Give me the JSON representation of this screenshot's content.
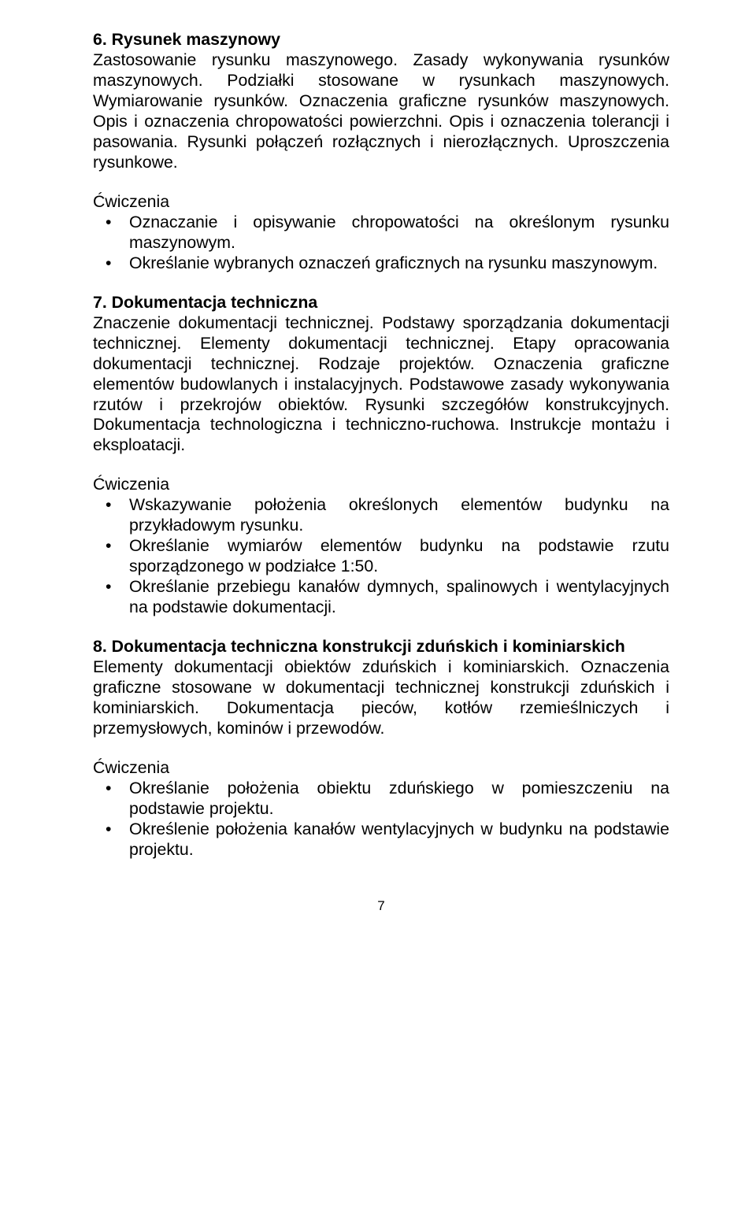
{
  "section6": {
    "heading": "6. Rysunek maszynowy",
    "para": "Zastosowanie rysunku maszynowego. Zasady wykonywania rysunków maszynowych. Podziałki stosowane w rysunkach maszynowych. Wymiarowanie rysunków. Oznaczenia graficzne rysunków maszynowych. Opis i oznaczenia chropowatości powierzchni. Opis i oznaczenia tolerancji i pasowania. Rysunki połączeń rozłącznych i nierozłącznych. Uproszczenia rysunkowe.",
    "ex_label": "Ćwiczenia",
    "items": [
      "Oznaczanie i opisywanie chropowatości na określonym rysunku maszynowym.",
      "Określanie wybranych oznaczeń graficznych na rysunku maszynowym."
    ]
  },
  "section7": {
    "heading": "7. Dokumentacja techniczna",
    "para": "Znaczenie dokumentacji technicznej. Podstawy sporządzania dokumentacji technicznej. Elementy dokumentacji technicznej. Etapy opracowania dokumentacji technicznej. Rodzaje projektów. Oznaczenia graficzne elementów budowlanych i instalacyjnych. Podstawowe zasady wykonywania rzutów i przekrojów obiektów. Rysunki szczegółów konstrukcyjnych. Dokumentacja technologiczna i techniczno-ruchowa. Instrukcje montażu i eksploatacji.",
    "ex_label": "Ćwiczenia",
    "items": [
      "Wskazywanie położenia określonych elementów budynku na przykładowym rysunku.",
      "Określanie wymiarów elementów budynku na podstawie rzutu sporządzonego w podziałce 1:50.",
      "Określanie przebiegu kanałów dymnych, spalinowych i wentylacyjnych na podstawie dokumentacji."
    ]
  },
  "section8": {
    "heading": "8. Dokumentacja techniczna konstrukcji zduńskich i kominiarskich",
    "para": "Elementy dokumentacji obiektów zduńskich i kominiarskich. Oznaczenia graficzne stosowane w dokumentacji technicznej konstrukcji zduńskich i kominiarskich. Dokumentacja pieców, kotłów rzemieślniczych i przemysłowych, kominów i przewodów.",
    "ex_label": "Ćwiczenia",
    "items": [
      "Określanie położenia obiektu zduńskiego w pomieszczeniu na podstawie projektu.",
      "Określenie położenia kanałów wentylacyjnych w budynku na podstawie projektu."
    ]
  },
  "page_number": "7"
}
